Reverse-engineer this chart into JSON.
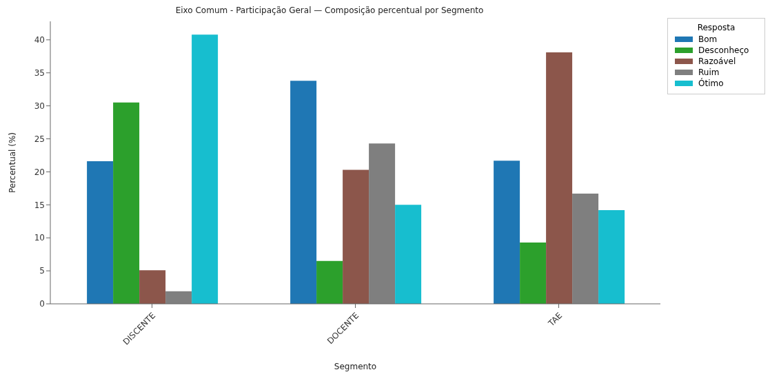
{
  "chart_data": {
    "type": "bar",
    "title": "Eixo Comum - Participação Geral — Composição percentual por Segmento",
    "xlabel": "Segmento",
    "ylabel": "Percentual (%)",
    "legend_title": "Resposta",
    "categories": [
      "DISCENTE",
      "DOCENTE",
      "TAE"
    ],
    "series": [
      {
        "name": "Bom",
        "color": "#1f77b4",
        "values": [
          21.6,
          33.8,
          21.7
        ]
      },
      {
        "name": "Desconheço",
        "color": "#2ca02c",
        "values": [
          30.5,
          6.5,
          9.3
        ]
      },
      {
        "name": "Razoável",
        "color": "#8c564b",
        "values": [
          5.1,
          20.3,
          38.1
        ]
      },
      {
        "name": "Ruim",
        "color": "#7f7f7f",
        "values": [
          1.9,
          24.3,
          16.7
        ]
      },
      {
        "name": "Ótimo",
        "color": "#17becf",
        "values": [
          40.8,
          15.0,
          14.2
        ]
      }
    ],
    "ylim": [
      0,
      42.8
    ],
    "yticks": [
      0,
      5,
      10,
      15,
      20,
      25,
      30,
      35,
      40
    ],
    "grid": false,
    "legend": "top right"
  }
}
